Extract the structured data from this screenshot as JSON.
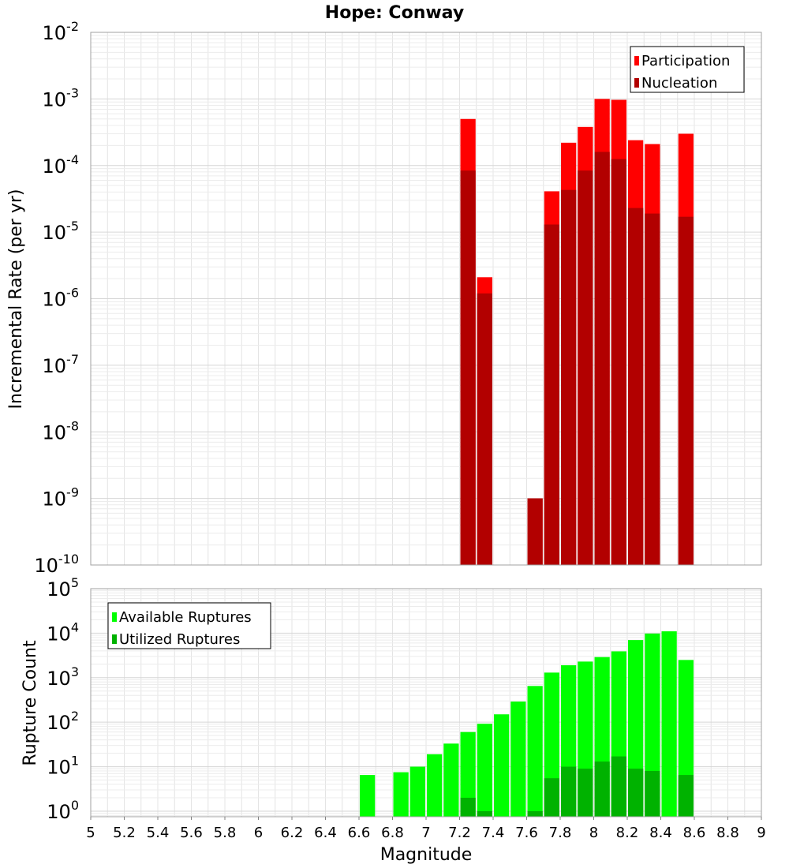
{
  "chart_data": [
    {
      "type": "bar",
      "title": "Hope: Conway",
      "ylabel": "Incremental Rate (per yr)",
      "xlabel": "",
      "y_scale": "log",
      "ylim": [
        1e-10,
        0.01
      ],
      "xlim": [
        5,
        9
      ],
      "y_tick_exponents": [
        -10,
        -9,
        -8,
        -7,
        -6,
        -5,
        -4,
        -3,
        -2
      ],
      "legend": {
        "position": "top-right"
      },
      "bin_width": 0.1,
      "series": [
        {
          "name": "Participation",
          "color": "#ff0000",
          "points": [
            {
              "x": 7.25,
              "y": 0.0005
            },
            {
              "x": 7.35,
              "y": 2.1e-06
            },
            {
              "x": 7.65,
              "y": 1e-09
            },
            {
              "x": 7.75,
              "y": 4.1e-05
            },
            {
              "x": 7.85,
              "y": 0.00022
            },
            {
              "x": 7.95,
              "y": 0.00038
            },
            {
              "x": 8.05,
              "y": 0.001
            },
            {
              "x": 8.15,
              "y": 0.00097
            },
            {
              "x": 8.25,
              "y": 0.00024
            },
            {
              "x": 8.35,
              "y": 0.00021
            },
            {
              "x": 8.55,
              "y": 0.0003
            }
          ]
        },
        {
          "name": "Nucleation",
          "color": "#b20000",
          "points": [
            {
              "x": 7.25,
              "y": 8.4e-05
            },
            {
              "x": 7.35,
              "y": 1.2e-06
            },
            {
              "x": 7.65,
              "y": 1e-09
            },
            {
              "x": 7.75,
              "y": 1.3e-05
            },
            {
              "x": 7.85,
              "y": 4.3e-05
            },
            {
              "x": 7.95,
              "y": 8.4e-05
            },
            {
              "x": 8.05,
              "y": 0.00016
            },
            {
              "x": 8.15,
              "y": 0.000125
            },
            {
              "x": 8.25,
              "y": 2.3e-05
            },
            {
              "x": 8.35,
              "y": 1.9e-05
            },
            {
              "x": 8.55,
              "y": 1.7e-05
            }
          ]
        }
      ]
    },
    {
      "type": "bar",
      "title": "",
      "ylabel": "Rupture Count",
      "xlabel": "Magnitude",
      "y_scale": "log",
      "ylim": [
        0.75,
        100000.0
      ],
      "xlim": [
        5,
        9
      ],
      "y_tick_exponents": [
        0,
        1,
        2,
        3,
        4,
        5
      ],
      "x_ticks": [
        "5",
        "5.2",
        "5.4",
        "5.6",
        "5.8",
        "6",
        "6.2",
        "6.4",
        "6.6",
        "6.8",
        "7",
        "7.2",
        "7.4",
        "7.6",
        "7.8",
        "8",
        "8.2",
        "8.4",
        "8.6",
        "8.8",
        "9"
      ],
      "legend": {
        "position": "top-left"
      },
      "bin_width": 0.1,
      "series": [
        {
          "name": "Available Ruptures",
          "color": "#00ff00",
          "points": [
            {
              "x": 6.65,
              "y": 6.5
            },
            {
              "x": 6.85,
              "y": 7.5
            },
            {
              "x": 6.95,
              "y": 10
            },
            {
              "x": 7.05,
              "y": 19
            },
            {
              "x": 7.15,
              "y": 33
            },
            {
              "x": 7.25,
              "y": 60
            },
            {
              "x": 7.35,
              "y": 92
            },
            {
              "x": 7.45,
              "y": 150
            },
            {
              "x": 7.55,
              "y": 290
            },
            {
              "x": 7.65,
              "y": 650
            },
            {
              "x": 7.75,
              "y": 1300
            },
            {
              "x": 7.85,
              "y": 1900
            },
            {
              "x": 7.95,
              "y": 2300
            },
            {
              "x": 8.05,
              "y": 2900
            },
            {
              "x": 8.15,
              "y": 3900
            },
            {
              "x": 8.25,
              "y": 7000
            },
            {
              "x": 8.35,
              "y": 9800
            },
            {
              "x": 8.45,
              "y": 11000
            },
            {
              "x": 8.55,
              "y": 2500
            }
          ]
        },
        {
          "name": "Utilized Ruptures",
          "color": "#00b200",
          "points": [
            {
              "x": 7.25,
              "y": 2
            },
            {
              "x": 7.35,
              "y": 1
            },
            {
              "x": 7.65,
              "y": 1
            },
            {
              "x": 7.75,
              "y": 5.5
            },
            {
              "x": 7.85,
              "y": 10
            },
            {
              "x": 7.95,
              "y": 9
            },
            {
              "x": 8.05,
              "y": 13
            },
            {
              "x": 8.15,
              "y": 17
            },
            {
              "x": 8.25,
              "y": 9
            },
            {
              "x": 8.35,
              "y": 8
            },
            {
              "x": 8.55,
              "y": 6.5
            }
          ]
        }
      ]
    }
  ]
}
